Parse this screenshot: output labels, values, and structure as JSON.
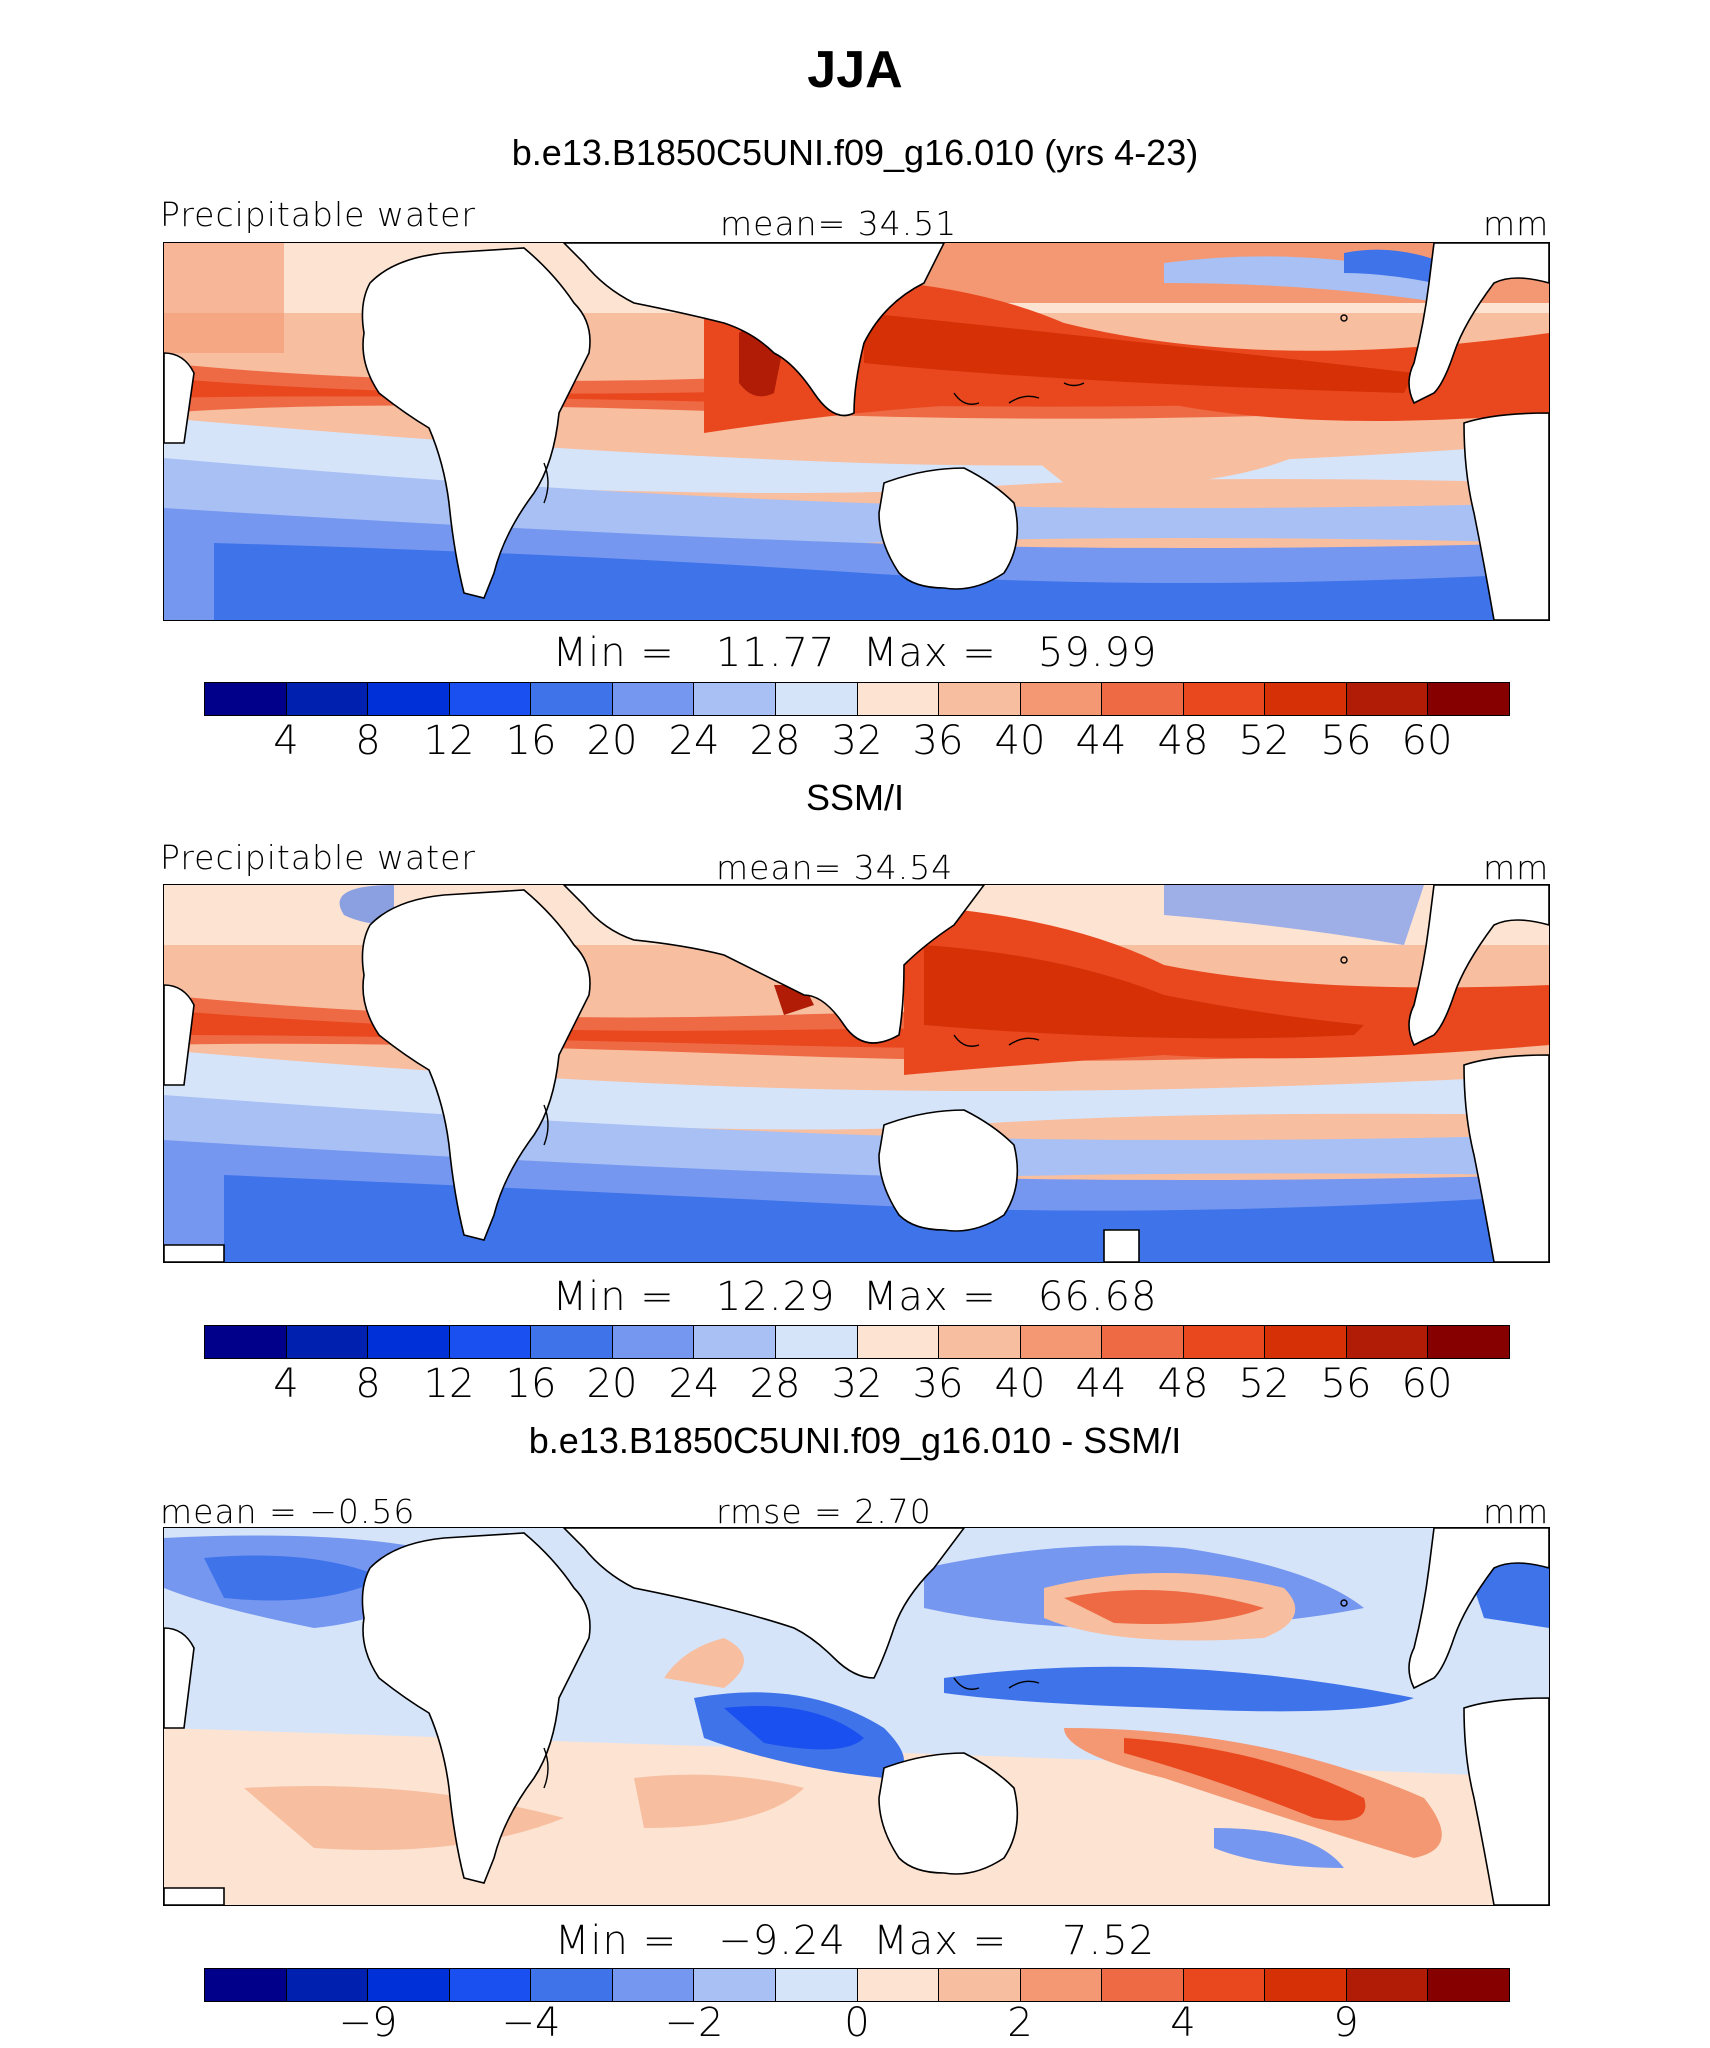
{
  "title": "JJA",
  "panels": [
    {
      "heading": "b.e13.B1850C5UNI.f09_g16.010 (yrs 4-23)",
      "left_label": "Precipitable water",
      "center_label": "mean=  34.51",
      "right_label": "mm",
      "minmax": "Min =   11.77  Max =   59.99",
      "tick_labels": [
        "4",
        "8",
        "12",
        "16",
        "20",
        "24",
        "28",
        "32",
        "36",
        "40",
        "44",
        "48",
        "52",
        "56",
        "60"
      ]
    },
    {
      "heading": "SSM/I",
      "left_label": "Precipitable water",
      "center_label": "mean=  34.54",
      "right_label": "mm",
      "minmax": "Min =   12.29  Max =   66.68",
      "tick_labels": [
        "4",
        "8",
        "12",
        "16",
        "20",
        "24",
        "28",
        "32",
        "36",
        "40",
        "44",
        "48",
        "52",
        "56",
        "60"
      ]
    },
    {
      "heading": "b.e13.B1850C5UNI.f09_g16.010 - SSM/I",
      "left_label": "mean =  −0.56",
      "center_label": "rmse =   2.70",
      "right_label": "mm",
      "minmax": "Min =   −9.24  Max =    7.52",
      "tick_labels": [
        "−9",
        "−4",
        "−2",
        "0",
        "2",
        "4",
        "9"
      ]
    }
  ],
  "colors": {
    "colorbar": [
      "#00008a",
      "#0020b0",
      "#0030d8",
      "#1a4ff0",
      "#3f73ea",
      "#7597f0",
      "#a8c0f4",
      "#d6e4fa",
      "#fde3d1",
      "#f7bea0",
      "#f39872",
      "#ee6a44",
      "#e9481f",
      "#d63007",
      "#b01c05",
      "#860000"
    ],
    "land": "#ffffff",
    "coast": "#000000"
  }
}
